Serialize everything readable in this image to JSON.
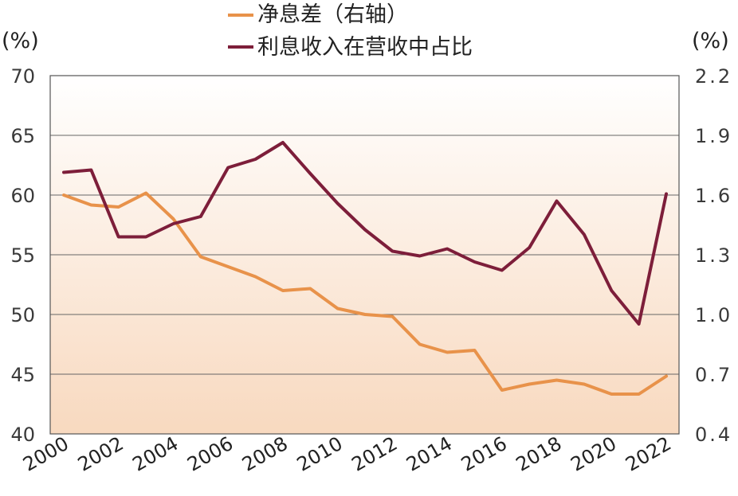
{
  "chart_data": {
    "type": "line",
    "title": "",
    "x": [
      2000,
      2001,
      2002,
      2003,
      2004,
      2005,
      2006,
      2007,
      2008,
      2009,
      2010,
      2011,
      2012,
      2013,
      2014,
      2015,
      2016,
      2017,
      2018,
      2019,
      2020,
      2021,
      2022
    ],
    "x_tick_labels": [
      "2000",
      "2002",
      "2004",
      "2006",
      "2008",
      "2010",
      "2012",
      "2014",
      "2016",
      "2018",
      "2020",
      "2022"
    ],
    "left_axis": {
      "label": "(%)",
      "ylim": [
        40,
        70
      ],
      "ticks": [
        "70",
        "65",
        "60",
        "55",
        "50",
        "45",
        "40"
      ]
    },
    "right_axis": {
      "label": "(%)",
      "ylim": [
        0.4,
        2.2
      ],
      "ticks": [
        "2.2",
        "1.9",
        "1.6",
        "1.3",
        "1.0",
        "0.7",
        "0.4"
      ]
    },
    "grid": true,
    "legend_position": "top-center",
    "series": [
      {
        "name": "净息差（右轴）",
        "axis": "right",
        "color": "#e8924a",
        "values": [
          1.6,
          1.55,
          1.54,
          1.61,
          1.48,
          1.29,
          1.24,
          1.19,
          1.12,
          1.13,
          1.03,
          1.0,
          0.99,
          0.85,
          0.81,
          0.82,
          0.62,
          0.65,
          0.67,
          0.65,
          0.6,
          0.6,
          0.69
        ]
      },
      {
        "name": "利息收入在营收中占比",
        "axis": "left",
        "color": "#7d1e3a",
        "values": [
          61.9,
          62.1,
          56.5,
          56.5,
          57.6,
          58.2,
          62.3,
          63.0,
          64.4,
          61.8,
          59.3,
          57.1,
          55.3,
          54.9,
          55.5,
          54.4,
          53.7,
          55.6,
          59.5,
          56.7,
          52.0,
          49.2,
          60.1
        ]
      }
    ],
    "area_fill_colors": [
      "#ffffff",
      "#f8d9bf"
    ]
  }
}
